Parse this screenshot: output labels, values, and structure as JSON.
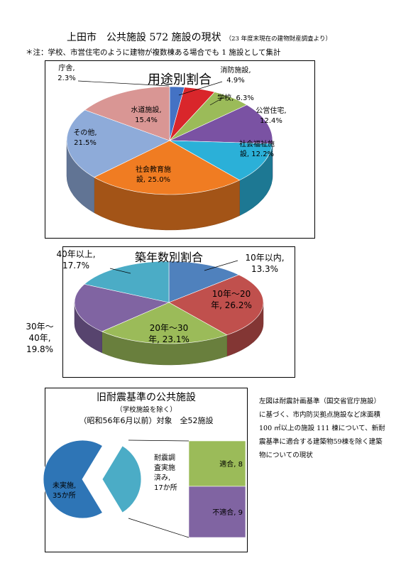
{
  "header": {
    "title": "上田市　公共施設 572 施設の現状",
    "title_sub": "（23 年度末現在の建物財産調査より）",
    "note": "＊注：学校、市営住宅のように建物が複数棟ある場合でも 1 施設として集計"
  },
  "side_note": "左図は耐震計画基準（国交省官庁施設）に基づく、市内防災拠点施設など床面積 100 ㎡以上の施設 111 棟について、新耐震基準に適合する建築物59棟を除く建築物についての現状",
  "chart_data": [
    {
      "type": "pie",
      "title": "用途別割合",
      "slices": [
        {
          "label_lines": [
            "庁舎,",
            "2.3%"
          ],
          "value": 2.3,
          "color": "#4472c4"
        },
        {
          "label_lines": [
            "消防施設,",
            "4.9%"
          ],
          "value": 4.9,
          "color": "#d9262b"
        },
        {
          "label_lines": [
            "学校, 6.3%"
          ],
          "value": 6.3,
          "color": "#9bbb59"
        },
        {
          "label_lines": [
            "公営住宅,",
            "12.4%"
          ],
          "value": 12.4,
          "color": "#7a52a3"
        },
        {
          "label_lines": [
            "社会福祉施",
            "設, 12.2%"
          ],
          "value": 12.2,
          "color": "#2bb0d8"
        },
        {
          "label_lines": [
            "社会教育施",
            "設, 25.0%"
          ],
          "value": 25.0,
          "color": "#f07c22"
        },
        {
          "label_lines": [
            "その他,",
            "21.5%"
          ],
          "value": 21.5,
          "color": "#8eabd9"
        },
        {
          "label_lines": [
            "水道施設,",
            "15.4%"
          ],
          "value": 15.4,
          "color": "#d99694"
        }
      ]
    },
    {
      "type": "pie",
      "title": "築年数別割合",
      "slices": [
        {
          "label_lines": [
            "10年以内,",
            "13.3%"
          ],
          "value": 13.3,
          "color": "#4f81bd"
        },
        {
          "label_lines": [
            "10年～20",
            "年, 26.2%"
          ],
          "value": 26.2,
          "color": "#c0504d"
        },
        {
          "label_lines": [
            "20年～30",
            "年, 23.1%"
          ],
          "value": 23.1,
          "color": "#9bbb59"
        },
        {
          "label_lines": [
            "30年～",
            "40年,",
            "19.8%"
          ],
          "value": 19.8,
          "color": "#8064a2"
        },
        {
          "label_lines": [
            "40年以上,",
            "17.7%"
          ],
          "value": 17.7,
          "color": "#4bacc6"
        }
      ]
    },
    {
      "type": "pie",
      "title": "旧耐震基準の公共施設",
      "subtitle": "（学校施設を除く）",
      "subtitle2": "（昭和56年6月以前）対象　全52施設",
      "slices": [
        {
          "label_lines": [
            "未実施,",
            "35か所"
          ],
          "value": 35,
          "color": "#2e75b6"
        },
        {
          "label_lines": [
            "耐震調",
            "査実施",
            "済み,",
            "17か所"
          ],
          "value": 17,
          "color": "#4bacc6"
        }
      ],
      "breakdown": [
        {
          "label": "適合, 8",
          "value": 8,
          "color": "#9bbb59"
        },
        {
          "label": "不適合, 9",
          "value": 9,
          "color": "#8064a2"
        }
      ]
    }
  ]
}
